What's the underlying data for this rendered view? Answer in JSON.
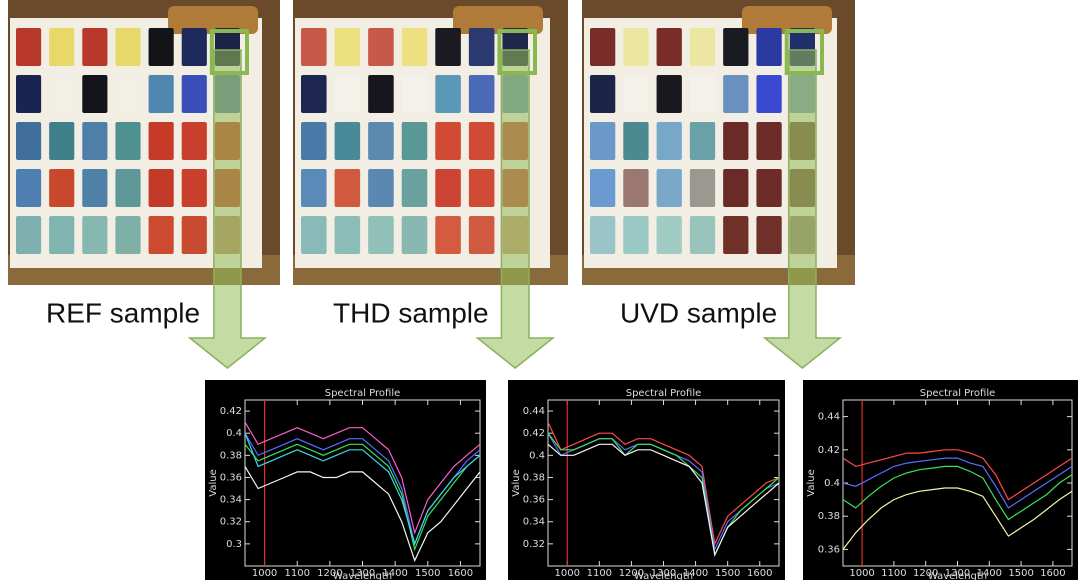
{
  "sample_labels": [
    "REF sample",
    "THD sample",
    "UVD sample"
  ],
  "chart_data": [
    {
      "type": "line",
      "title": "Spectral Profile",
      "x_label": "Wavelength",
      "y_label": "Value",
      "x": [
        940,
        980,
        1020,
        1060,
        1100,
        1140,
        1180,
        1220,
        1260,
        1300,
        1340,
        1380,
        1420,
        1460,
        1500,
        1540,
        1580,
        1620,
        1660
      ],
      "xlim": [
        940,
        1660
      ],
      "xticks": [
        1000,
        1100,
        1200,
        1300,
        1400,
        1500,
        1600
      ],
      "ylim": [
        0.28,
        0.43
      ],
      "yticks": [
        0.3,
        0.32,
        0.34,
        0.36,
        0.38,
        0.4,
        0.42
      ],
      "vline": 1000,
      "vline_color": "#e0302a",
      "series": [
        {
          "color": "#ff5cc8",
          "values": [
            0.41,
            0.39,
            0.395,
            0.4,
            0.405,
            0.4,
            0.395,
            0.4,
            0.405,
            0.405,
            0.395,
            0.385,
            0.36,
            0.31,
            0.34,
            0.355,
            0.37,
            0.38,
            0.39
          ]
        },
        {
          "color": "#5a6cff",
          "values": [
            0.4,
            0.38,
            0.385,
            0.39,
            0.395,
            0.39,
            0.385,
            0.39,
            0.395,
            0.395,
            0.385,
            0.375,
            0.35,
            0.3,
            0.33,
            0.345,
            0.36,
            0.375,
            0.385
          ]
        },
        {
          "color": "#3ce05a",
          "values": [
            0.39,
            0.375,
            0.38,
            0.385,
            0.39,
            0.385,
            0.38,
            0.385,
            0.39,
            0.39,
            0.38,
            0.37,
            0.345,
            0.295,
            0.325,
            0.34,
            0.355,
            0.37,
            0.38
          ]
        },
        {
          "color": "#3cd8e8",
          "values": [
            0.4,
            0.37,
            0.375,
            0.38,
            0.385,
            0.38,
            0.375,
            0.38,
            0.385,
            0.385,
            0.375,
            0.365,
            0.34,
            0.3,
            0.33,
            0.345,
            0.36,
            0.37,
            0.38
          ]
        },
        {
          "color": "#f4f4f4",
          "values": [
            0.37,
            0.35,
            0.355,
            0.36,
            0.365,
            0.365,
            0.36,
            0.36,
            0.365,
            0.365,
            0.355,
            0.345,
            0.32,
            0.285,
            0.31,
            0.32,
            0.335,
            0.35,
            0.365
          ]
        }
      ]
    },
    {
      "type": "line",
      "title": "Spectral Profile",
      "x_label": "Wavelength",
      "y_label": "Value",
      "x": [
        940,
        980,
        1020,
        1060,
        1100,
        1140,
        1180,
        1220,
        1260,
        1300,
        1340,
        1380,
        1420,
        1460,
        1500,
        1540,
        1580,
        1620,
        1660
      ],
      "xlim": [
        940,
        1660
      ],
      "xticks": [
        1000,
        1100,
        1200,
        1300,
        1400,
        1500,
        1600
      ],
      "ylim": [
        0.3,
        0.45
      ],
      "yticks": [
        0.32,
        0.34,
        0.36,
        0.38,
        0.4,
        0.42,
        0.44
      ],
      "vline": 1000,
      "vline_color": "#e0302a",
      "series": [
        {
          "color": "#ff4a4a",
          "values": [
            0.43,
            0.405,
            0.41,
            0.415,
            0.42,
            0.42,
            0.41,
            0.415,
            0.415,
            0.41,
            0.405,
            0.4,
            0.39,
            0.32,
            0.345,
            0.355,
            0.365,
            0.375,
            0.38
          ]
        },
        {
          "color": "#5a6cff",
          "values": [
            0.42,
            0.4,
            0.405,
            0.41,
            0.415,
            0.415,
            0.405,
            0.41,
            0.41,
            0.405,
            0.4,
            0.395,
            0.385,
            0.315,
            0.34,
            0.35,
            0.36,
            0.37,
            0.375
          ]
        },
        {
          "color": "#3ce05a",
          "values": [
            0.42,
            0.405,
            0.405,
            0.41,
            0.415,
            0.415,
            0.4,
            0.41,
            0.41,
            0.405,
            0.4,
            0.39,
            0.38,
            0.31,
            0.335,
            0.35,
            0.36,
            0.37,
            0.38
          ]
        },
        {
          "color": "#f4f4f4",
          "values": [
            0.41,
            0.4,
            0.4,
            0.405,
            0.41,
            0.41,
            0.4,
            0.405,
            0.405,
            0.4,
            0.395,
            0.39,
            0.375,
            0.31,
            0.335,
            0.345,
            0.355,
            0.365,
            0.375
          ]
        }
      ]
    },
    {
      "type": "line",
      "title": "Spectral Profile",
      "x_label": "Wavelength",
      "y_label": "Value",
      "x": [
        940,
        980,
        1020,
        1060,
        1100,
        1140,
        1180,
        1220,
        1260,
        1300,
        1340,
        1380,
        1420,
        1460,
        1500,
        1540,
        1580,
        1620,
        1660
      ],
      "xlim": [
        940,
        1660
      ],
      "xticks": [
        1000,
        1100,
        1200,
        1300,
        1400,
        1500,
        1600
      ],
      "ylim": [
        0.35,
        0.45
      ],
      "yticks": [
        0.36,
        0.38,
        0.4,
        0.42,
        0.44
      ],
      "vline": 1000,
      "vline_color": "#e0302a",
      "series": [
        {
          "color": "#ff4a4a",
          "values": [
            0.415,
            0.41,
            0.412,
            0.414,
            0.416,
            0.418,
            0.418,
            0.419,
            0.42,
            0.42,
            0.418,
            0.415,
            0.405,
            0.39,
            0.395,
            0.4,
            0.405,
            0.41,
            0.415
          ]
        },
        {
          "color": "#5a6cff",
          "values": [
            0.4,
            0.398,
            0.402,
            0.406,
            0.41,
            0.412,
            0.413,
            0.414,
            0.415,
            0.415,
            0.412,
            0.41,
            0.398,
            0.385,
            0.39,
            0.395,
            0.4,
            0.405,
            0.41
          ]
        },
        {
          "color": "#3ce05a",
          "values": [
            0.39,
            0.385,
            0.392,
            0.398,
            0.403,
            0.406,
            0.408,
            0.409,
            0.41,
            0.41,
            0.407,
            0.403,
            0.39,
            0.378,
            0.383,
            0.388,
            0.393,
            0.4,
            0.405
          ]
        },
        {
          "color": "#f4f4a8",
          "values": [
            0.36,
            0.37,
            0.378,
            0.385,
            0.39,
            0.393,
            0.395,
            0.396,
            0.397,
            0.397,
            0.395,
            0.392,
            0.38,
            0.368,
            0.373,
            0.378,
            0.384,
            0.39,
            0.395
          ]
        }
      ]
    }
  ]
}
